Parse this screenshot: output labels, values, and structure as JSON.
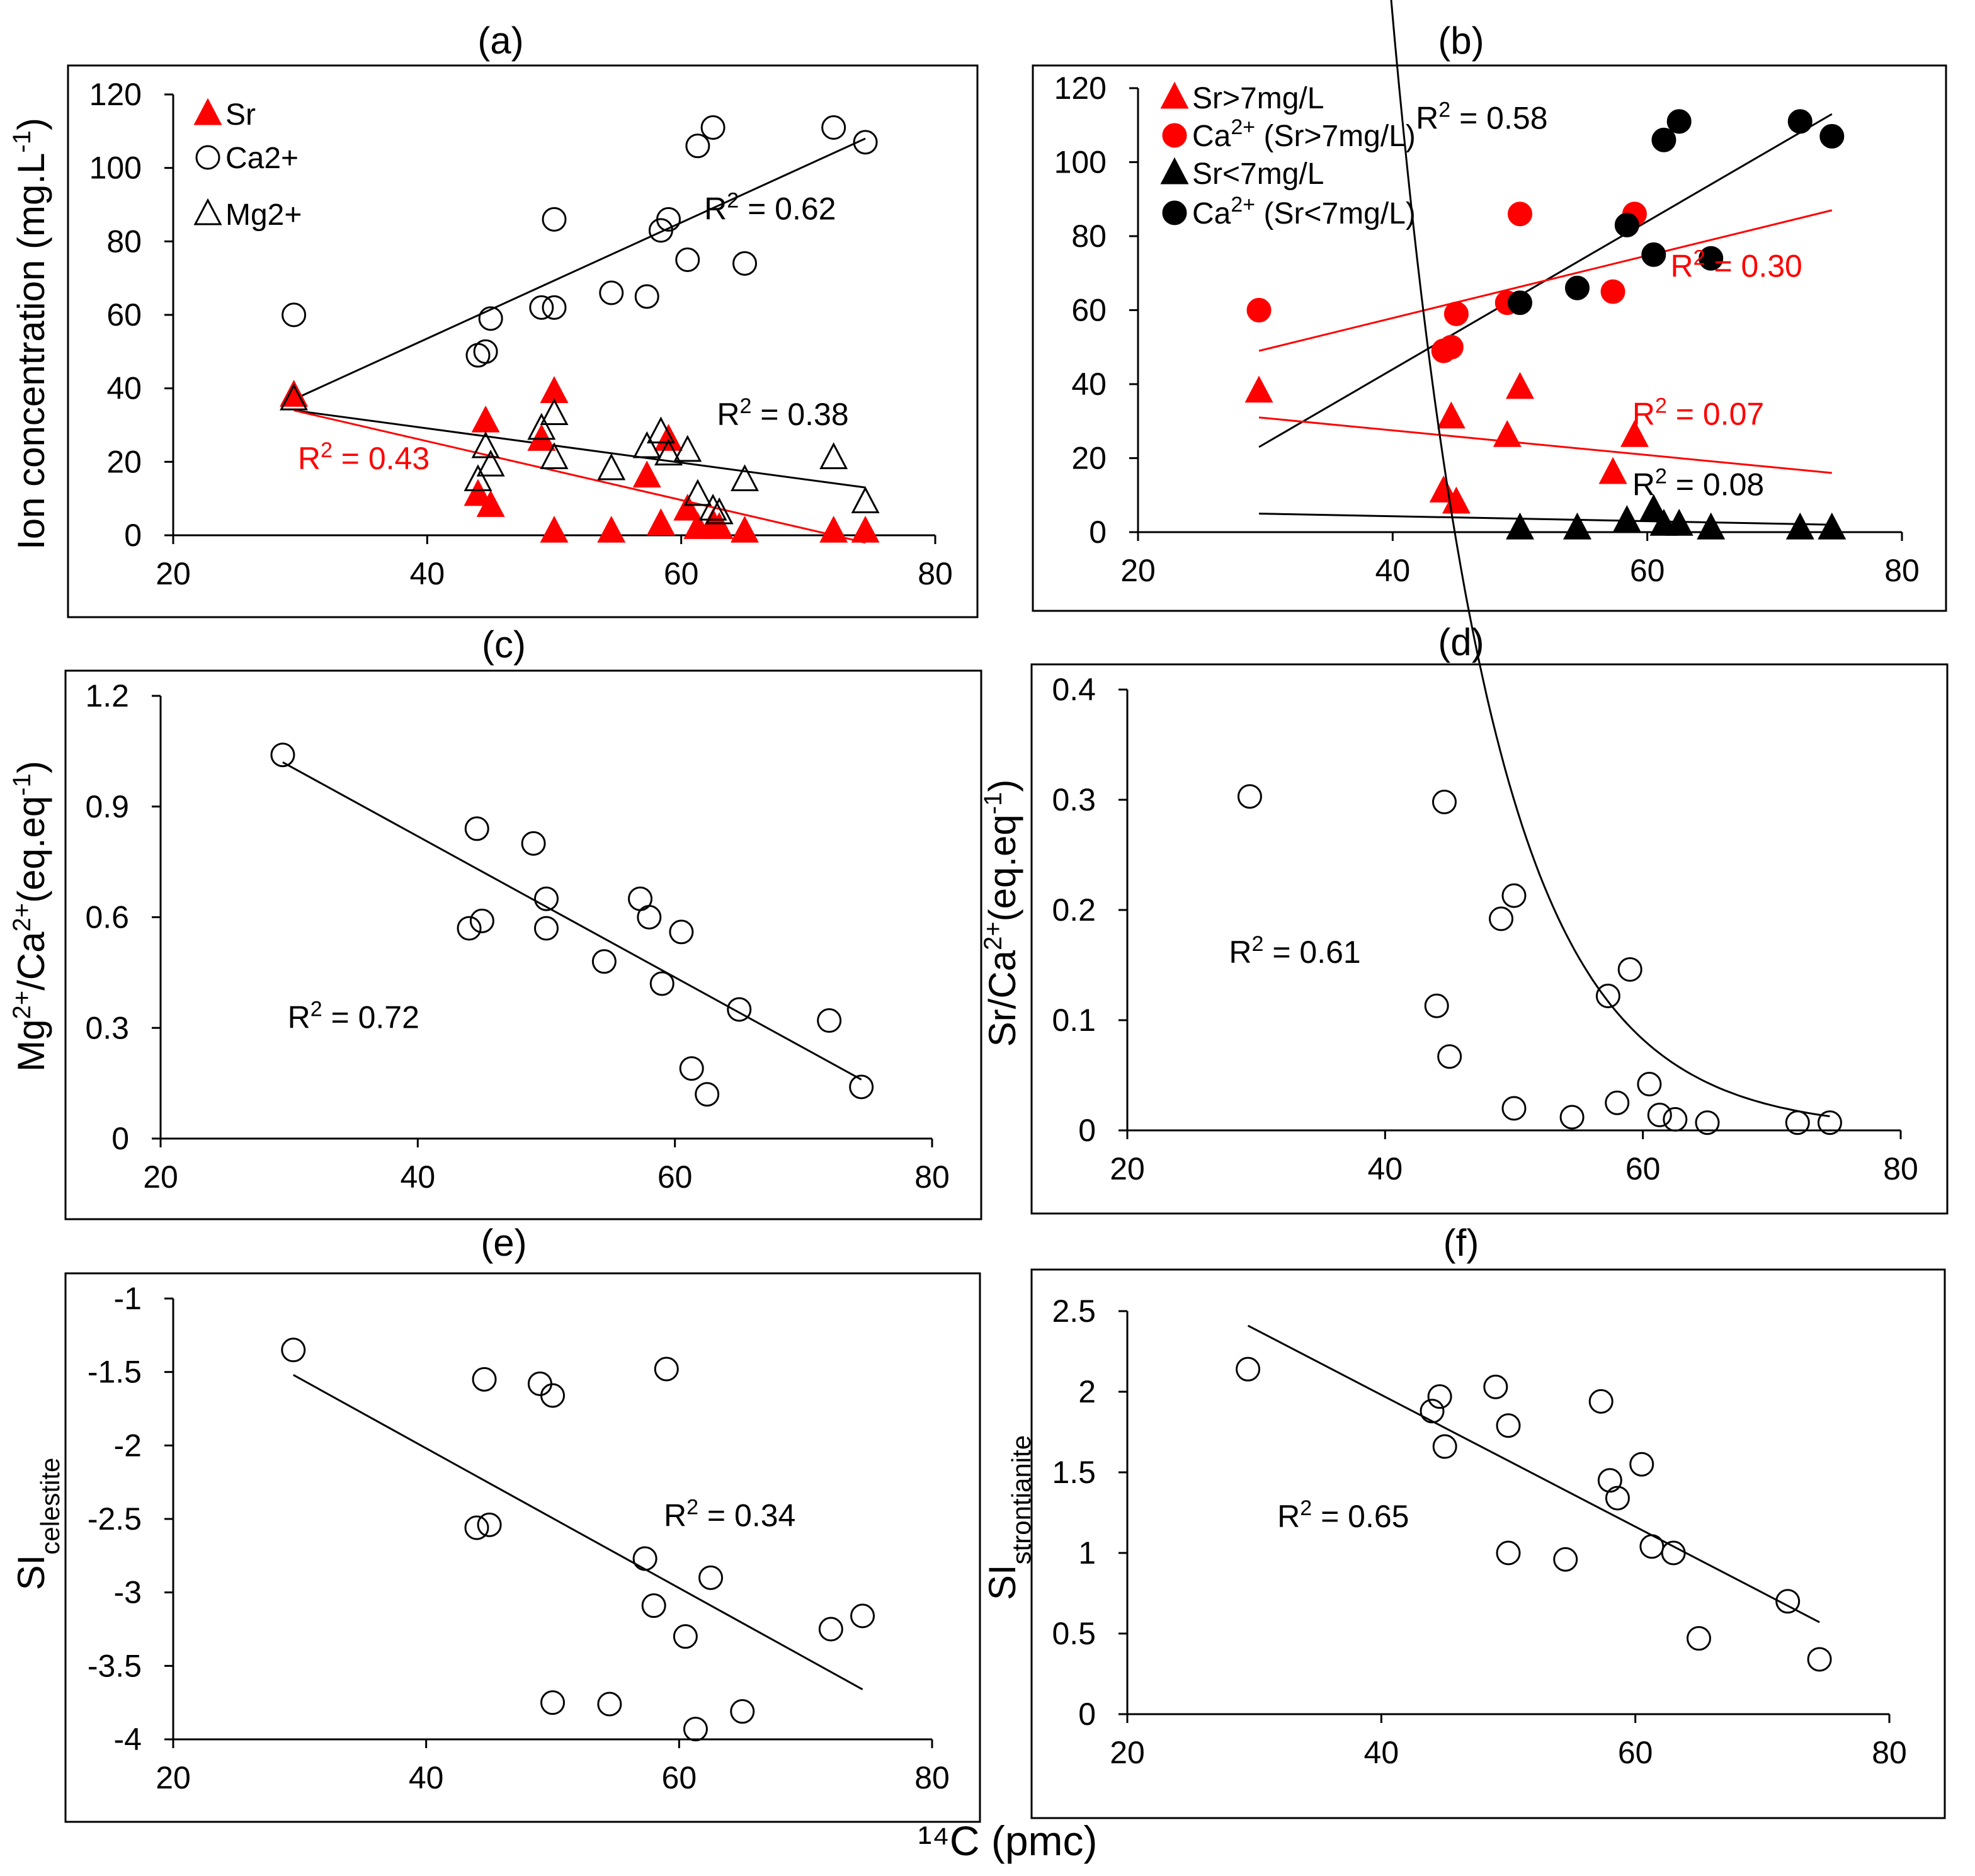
{
  "figure": {
    "xlabel": "¹⁴C (pmc)",
    "colors": {
      "black": "#000000",
      "red": "#ff0000"
    }
  },
  "chart_data": [
    {
      "panel": "(a)",
      "type": "scatter",
      "ylabel": "Ion concentration (mg.L⁻¹)",
      "xlim": [
        20,
        80
      ],
      "ylim": [
        0,
        120
      ],
      "xticks": [
        20,
        40,
        60,
        80
      ],
      "yticks": [
        0,
        20,
        40,
        60,
        80,
        100,
        120
      ],
      "legend_position": "top-left",
      "series": [
        {
          "name": "Sr",
          "marker": "triangle",
          "filled": true,
          "color": "#ff0000",
          "points": [
            [
              29.5,
              38
            ],
            [
              44,
              11
            ],
            [
              44.6,
              31
            ],
            [
              45,
              8
            ],
            [
              49,
              26
            ],
            [
              50,
              1
            ],
            [
              50,
              39
            ],
            [
              54.5,
              1
            ],
            [
              57.3,
              16
            ],
            [
              58.4,
              3
            ],
            [
              59,
              26
            ],
            [
              60.5,
              7
            ],
            [
              61.3,
              2
            ],
            [
              62.5,
              3
            ],
            [
              63,
              2
            ],
            [
              65,
              1
            ],
            [
              72,
              1
            ],
            [
              74.5,
              1
            ]
          ]
        },
        {
          "name": "Ca2+",
          "marker": "circle",
          "filled": false,
          "color": "#000000",
          "points": [
            [
              29.5,
              60
            ],
            [
              44,
              49
            ],
            [
              44.6,
              50
            ],
            [
              45,
              59
            ],
            [
              49,
              62
            ],
            [
              50,
              62
            ],
            [
              50,
              86
            ],
            [
              54.5,
              66
            ],
            [
              57.3,
              65
            ],
            [
              58.4,
              83
            ],
            [
              59,
              86
            ],
            [
              60.5,
              75
            ],
            [
              61.3,
              106
            ],
            [
              62.5,
              111
            ],
            [
              65,
              74
            ],
            [
              72,
              111
            ],
            [
              74.5,
              107
            ]
          ]
        },
        {
          "name": "Mg2+",
          "marker": "triangle",
          "filled": false,
          "color": "#000000",
          "points": [
            [
              29.5,
              37
            ],
            [
              44,
              15
            ],
            [
              44.6,
              24
            ],
            [
              45,
              19
            ],
            [
              49,
              29
            ],
            [
              50,
              21
            ],
            [
              50,
              33
            ],
            [
              54.5,
              18
            ],
            [
              57.3,
              24
            ],
            [
              58.4,
              28
            ],
            [
              59,
              22
            ],
            [
              60.5,
              23
            ],
            [
              61.3,
              11
            ],
            [
              62.5,
              7
            ],
            [
              63,
              6
            ],
            [
              65,
              15
            ],
            [
              72,
              21
            ],
            [
              74.5,
              9
            ]
          ]
        }
      ],
      "trendlines": [
        {
          "type": "linear",
          "x": [
            29.5,
            74.5
          ],
          "y": [
            37,
            108
          ],
          "color": "#000000"
        },
        {
          "type": "linear",
          "x": [
            29.5,
            74.5
          ],
          "y": [
            34,
            13
          ],
          "color": "#000000"
        },
        {
          "type": "linear",
          "x": [
            29.5,
            74.5
          ],
          "y": [
            34,
            -2
          ],
          "color": "#ff0000"
        }
      ],
      "annotations": [
        {
          "text": "R² = 0.62",
          "x": 67,
          "y": 86,
          "color": "#000000"
        },
        {
          "text": "R² = 0.38",
          "x": 68,
          "y": 30,
          "color": "#000000"
        },
        {
          "text": "R² = 0.43",
          "x": 35,
          "y": 18,
          "color": "#ff0000"
        }
      ]
    },
    {
      "panel": "(b)",
      "type": "scatter",
      "ylabel": "",
      "xlim": [
        20,
        80
      ],
      "ylim": [
        0,
        120
      ],
      "xticks": [
        20,
        40,
        60,
        80
      ],
      "yticks": [
        0,
        20,
        40,
        60,
        80,
        100,
        120
      ],
      "legend_position": "top-left",
      "series": [
        {
          "name": "Sr>7mg/L",
          "marker": "triangle",
          "filled": true,
          "color": "#ff0000",
          "points": [
            [
              29.5,
              38
            ],
            [
              44.6,
              31
            ],
            [
              45,
              8
            ],
            [
              44,
              11
            ],
            [
              49,
              26
            ],
            [
              50,
              39
            ],
            [
              57.3,
              16
            ],
            [
              59,
              26
            ]
          ]
        },
        {
          "name": "Ca²⁺ (Sr>7mg/L)",
          "marker": "circle",
          "filled": true,
          "color": "#ff0000",
          "points": [
            [
              29.5,
              60
            ],
            [
              44,
              49
            ],
            [
              44.6,
              50
            ],
            [
              45,
              59
            ],
            [
              49,
              62
            ],
            [
              50,
              86
            ],
            [
              57.3,
              65
            ],
            [
              59,
              86
            ]
          ]
        },
        {
          "name": "Sr<7mg/L",
          "marker": "triangle",
          "filled": true,
          "color": "#000000",
          "points": [
            [
              50,
              1
            ],
            [
              54.5,
              1
            ],
            [
              58.4,
              3
            ],
            [
              60.5,
              6
            ],
            [
              61.3,
              2
            ],
            [
              62.5,
              2
            ],
            [
              65,
              1
            ],
            [
              72,
              1
            ],
            [
              74.5,
              1
            ]
          ]
        },
        {
          "name": "Ca²⁺  (Sr<7mg/L)",
          "marker": "circle",
          "filled": true,
          "color": "#000000",
          "points": [
            [
              50,
              62
            ],
            [
              54.5,
              66
            ],
            [
              58.4,
              83
            ],
            [
              60.5,
              75
            ],
            [
              61.3,
              106
            ],
            [
              62.5,
              111
            ],
            [
              65,
              74
            ],
            [
              72,
              111
            ],
            [
              74.5,
              107
            ]
          ]
        }
      ],
      "trendlines": [
        {
          "type": "linear",
          "x": [
            29.5,
            74.5
          ],
          "y": [
            23,
            113
          ],
          "color": "#000000"
        },
        {
          "type": "linear",
          "x": [
            29.5,
            74.5
          ],
          "y": [
            49,
            87
          ],
          "color": "#ff0000"
        },
        {
          "type": "linear",
          "x": [
            29.5,
            74.5
          ],
          "y": [
            31,
            16
          ],
          "color": "#ff0000"
        },
        {
          "type": "linear",
          "x": [
            29.5,
            74.5
          ],
          "y": [
            5,
            2
          ],
          "color": "#000000"
        }
      ],
      "annotations": [
        {
          "text": "R² = 0.58",
          "x": 47,
          "y": 109,
          "color": "#000000"
        },
        {
          "text": "R² = 0.30",
          "x": 67,
          "y": 69,
          "color": "#ff0000"
        },
        {
          "text": "R² = 0.07",
          "x": 64,
          "y": 29,
          "color": "#ff0000"
        },
        {
          "text": "R² = 0.08",
          "x": 64,
          "y": 10,
          "color": "#000000"
        }
      ]
    },
    {
      "panel": "(c)",
      "type": "scatter",
      "ylabel": "Mg²⁺/Ca²⁺(eq.eq⁻¹)",
      "xlim": [
        20,
        80
      ],
      "ylim": [
        0,
        1.2
      ],
      "xticks": [
        20,
        40,
        60,
        80
      ],
      "yticks": [
        0,
        0.3,
        0.6,
        0.9,
        1.2
      ],
      "ytick_labels": [
        "0",
        "0.3",
        "0.6",
        "0.9",
        "1.2"
      ],
      "series": [
        {
          "name": "",
          "marker": "circle",
          "filled": false,
          "color": "#000000",
          "points": [
            [
              29.5,
              1.04
            ],
            [
              44,
              0.57
            ],
            [
              44.6,
              0.84
            ],
            [
              45,
              0.59
            ],
            [
              49,
              0.8
            ],
            [
              50,
              0.65
            ],
            [
              50,
              0.57
            ],
            [
              54.5,
              0.48
            ],
            [
              57.3,
              0.65
            ],
            [
              58,
              0.6
            ],
            [
              59,
              0.42
            ],
            [
              60.5,
              0.56
            ],
            [
              61.3,
              0.19
            ],
            [
              62.5,
              0.12
            ],
            [
              65,
              0.35
            ],
            [
              72,
              0.32
            ],
            [
              74.5,
              0.14
            ]
          ]
        }
      ],
      "trendlines": [
        {
          "type": "linear",
          "x": [
            29.5,
            74.5
          ],
          "y": [
            1.02,
            0.16
          ],
          "color": "#000000"
        }
      ],
      "annotations": [
        {
          "text": "R² = 0.72",
          "x": 35,
          "y": 0.3,
          "color": "#000000"
        }
      ]
    },
    {
      "panel": "(d)",
      "type": "scatter",
      "ylabel": "Sr/Ca²⁺(eq.eq⁻¹)",
      "xlim": [
        20,
        80
      ],
      "ylim": [
        0,
        0.4
      ],
      "xticks": [
        20,
        40,
        60,
        80
      ],
      "yticks": [
        0,
        0.1,
        0.2,
        0.3,
        0.4
      ],
      "ytick_labels": [
        "0",
        "0.1",
        "0.2",
        "0.3",
        "0.4"
      ],
      "series": [
        {
          "name": "",
          "marker": "circle",
          "filled": false,
          "color": "#000000",
          "points": [
            [
              29.5,
              0.303
            ],
            [
              44,
              0.113
            ],
            [
              44.6,
              0.298
            ],
            [
              45,
              0.067
            ],
            [
              49,
              0.192
            ],
            [
              50,
              0.213
            ],
            [
              50,
              0.02
            ],
            [
              54.5,
              0.012
            ],
            [
              57.3,
              0.122
            ],
            [
              58,
              0.025
            ],
            [
              59,
              0.146
            ],
            [
              60.5,
              0.042
            ],
            [
              61.3,
              0.014
            ],
            [
              62.5,
              0.01
            ],
            [
              65,
              0.007
            ],
            [
              72,
              0.007
            ],
            [
              74.5,
              0.007
            ]
          ]
        }
      ],
      "trendlines": [
        {
          "type": "exponential",
          "x_start": 33.6,
          "x_end": 74.5,
          "a": 189.8,
          "b": -0.129,
          "color": "#000000"
        }
      ],
      "annotations": [
        {
          "text": "R² = 0.61",
          "x": 33,
          "y": 0.152,
          "color": "#000000"
        }
      ]
    },
    {
      "panel": "(e)",
      "type": "scatter",
      "ylabel": "SIcelestite",
      "ylabel_main": "SI",
      "ylabel_sub": "celestite",
      "xlim": [
        20,
        80
      ],
      "ylim": [
        -4,
        -1
      ],
      "xticks": [
        20,
        40,
        60,
        80
      ],
      "yticks": [
        -4,
        -3.5,
        -3,
        -2.5,
        -2,
        -1.5,
        -1
      ],
      "ytick_labels": [
        "-4",
        "-3.5",
        "-3",
        "-2.5",
        "-2",
        "-1.5",
        "-1"
      ],
      "series": [
        {
          "name": "",
          "marker": "circle",
          "filled": false,
          "color": "#000000",
          "points": [
            [
              29.5,
              -1.35
            ],
            [
              44,
              -2.56
            ],
            [
              44.6,
              -1.55
            ],
            [
              45,
              -2.54
            ],
            [
              49,
              -1.58
            ],
            [
              50,
              -1.66
            ],
            [
              50,
              -3.75
            ],
            [
              54.5,
              -3.76
            ],
            [
              57.3,
              -2.77
            ],
            [
              58,
              -3.09
            ],
            [
              59,
              -1.48
            ],
            [
              60.5,
              -3.3
            ],
            [
              61.3,
              -3.93
            ],
            [
              62.5,
              -2.9
            ],
            [
              65,
              -3.81
            ],
            [
              72,
              -3.25
            ],
            [
              74.5,
              -3.16
            ]
          ]
        }
      ],
      "trendlines": [
        {
          "type": "linear",
          "x": [
            29.5,
            74.5
          ],
          "y": [
            -1.52,
            -3.66
          ],
          "color": "#000000"
        }
      ],
      "annotations": [
        {
          "text": "R² = 0.34",
          "x": 64,
          "y": -2.55,
          "color": "#000000"
        }
      ]
    },
    {
      "panel": "(f)",
      "type": "scatter",
      "ylabel": "SIstrontianite",
      "ylabel_main": "SI",
      "ylabel_sub": "strontianite",
      "xlim": [
        20,
        80
      ],
      "ylim": [
        0,
        2.5
      ],
      "xticks": [
        20,
        40,
        60,
        80
      ],
      "yticks": [
        0,
        0.5,
        1,
        1.5,
        2,
        2.5
      ],
      "ytick_labels": [
        "0",
        "0.5",
        "1",
        "1.5",
        "2",
        "2.5"
      ],
      "series": [
        {
          "name": "",
          "marker": "circle",
          "filled": false,
          "color": "#000000",
          "points": [
            [
              29.5,
              2.14
            ],
            [
              44,
              1.88
            ],
            [
              44.6,
              1.97
            ],
            [
              45,
              1.66
            ],
            [
              49,
              2.03
            ],
            [
              50,
              1.79
            ],
            [
              50,
              1.0
            ],
            [
              54.5,
              0.96
            ],
            [
              57.3,
              1.94
            ],
            [
              58,
              1.45
            ],
            [
              58.6,
              1.34
            ],
            [
              60.5,
              1.55
            ],
            [
              61.3,
              1.04
            ],
            [
              63,
              1.0
            ],
            [
              65,
              0.47
            ],
            [
              72,
              0.7
            ],
            [
              74.5,
              0.34
            ]
          ]
        }
      ],
      "trendlines": [
        {
          "type": "linear",
          "x": [
            29.5,
            74.5
          ],
          "y": [
            2.41,
            0.57
          ],
          "color": "#000000"
        }
      ],
      "annotations": [
        {
          "text": "R² = 0.65",
          "x": 37,
          "y": 1.16,
          "color": "#000000"
        }
      ]
    }
  ]
}
